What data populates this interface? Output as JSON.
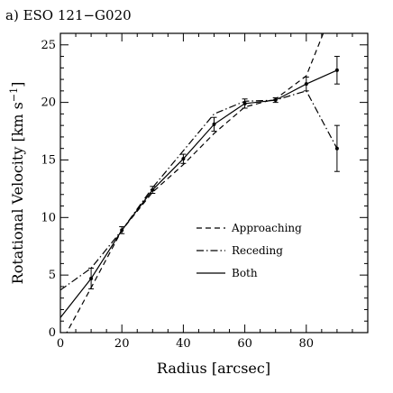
{
  "chart_data": {
    "type": "line",
    "title": "a) ESO 121−G020",
    "xlabel": "Radius [arcsec]",
    "ylabel": "Rotational Velocity [km s",
    "ylabel_sup": "−1",
    "ylabel_close": "]",
    "xlim": [
      0,
      100
    ],
    "ylim": [
      0,
      26
    ],
    "xticks": [
      0,
      20,
      40,
      60,
      80
    ],
    "yticks": [
      0,
      5,
      10,
      15,
      20,
      25
    ],
    "grid": false,
    "legend_position": "center-right",
    "series": [
      {
        "name": "Approaching",
        "style": "dashed",
        "x": [
          0,
          10,
          20,
          30,
          40,
          50,
          60,
          70,
          80,
          90
        ],
        "y": [
          -1.0,
          3.9,
          8.9,
          12.2,
          14.6,
          17.3,
          19.6,
          20.3,
          22.3,
          29.0
        ]
      },
      {
        "name": "Receding",
        "style": "dashdot",
        "x": [
          0,
          10,
          20,
          30,
          40,
          50,
          60,
          70,
          80,
          90
        ],
        "y": [
          3.7,
          5.6,
          8.9,
          12.6,
          15.8,
          19.0,
          20.1,
          20.2,
          21.0,
          16.0
        ]
      },
      {
        "name": "Both",
        "style": "solid",
        "x": [
          0,
          10,
          20,
          30,
          40,
          50,
          60,
          70,
          80,
          90
        ],
        "y": [
          1.3,
          4.7,
          8.9,
          12.4,
          15.1,
          18.1,
          19.9,
          20.2,
          21.6,
          22.8
        ],
        "err": [
          0,
          0.9,
          0.3,
          0.3,
          0.4,
          0.6,
          0.4,
          0.2,
          0.6,
          1.2
        ]
      }
    ],
    "extra_points": {
      "x": [
        90
      ],
      "y": [
        16.0
      ],
      "err": [
        2.0
      ]
    }
  }
}
